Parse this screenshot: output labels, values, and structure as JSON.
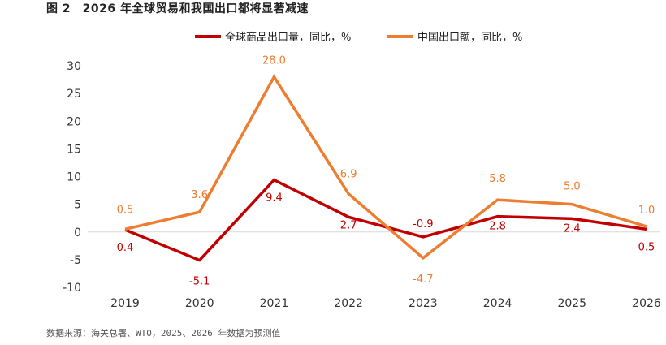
{
  "title": "图 2　2026 年全球贸易和我国出口都将显著减速",
  "source": "数据来源：海关总署、WTO，2025、2026 年数据为预测值",
  "chart_data": {
    "type": "line",
    "title": "图 2　2026 年全球贸易和我国出口都将显著减速",
    "xlabel": "",
    "ylabel": "",
    "categories": [
      "2019",
      "2020",
      "2021",
      "2022",
      "2023",
      "2024",
      "2025",
      "2026"
    ],
    "ylim": [
      -10,
      30
    ],
    "yticks": [
      30,
      25,
      20,
      15,
      10,
      5,
      0,
      -5,
      -10
    ],
    "grid": false,
    "zero_line": true,
    "legend_position": "top-center",
    "series": [
      {
        "name": "全球商品出口量，同比，%",
        "color": "#C00000",
        "values": [
          0.4,
          -5.1,
          9.4,
          2.7,
          -0.9,
          2.8,
          2.4,
          0.5
        ],
        "labels": [
          "0.4",
          "-5.1",
          "9.4",
          "2.7",
          "-0.9",
          "2.8",
          "2.4",
          "0.5"
        ]
      },
      {
        "name": "中国出口额，同比，%",
        "color": "#ED7D31",
        "values": [
          0.5,
          3.6,
          28.0,
          6.9,
          -4.7,
          5.8,
          5.0,
          1.0
        ],
        "labels": [
          "0.5",
          "3.6",
          "28.0",
          "6.9",
          "-4.7",
          "5.8",
          "5.0",
          "1.0"
        ]
      }
    ]
  }
}
